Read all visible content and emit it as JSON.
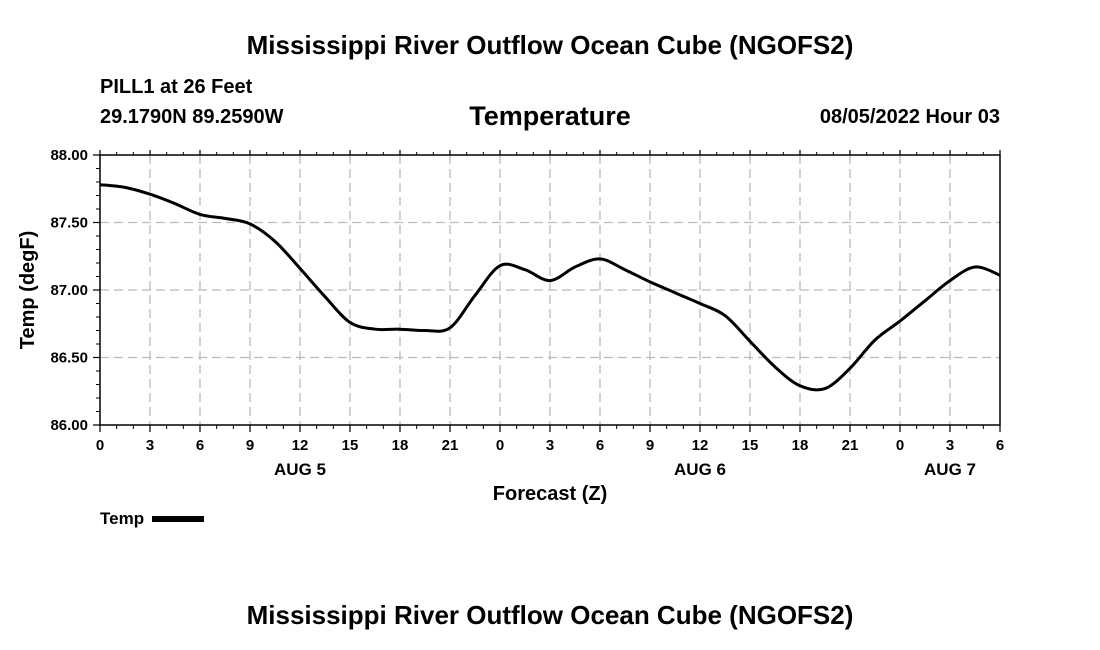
{
  "header": {
    "title": "Mississippi River Outflow Ocean Cube (NGOFS2)",
    "station": "PILL1 at 26 Feet",
    "coords": "29.1790N  89.2590W",
    "chart_title": "Temperature",
    "datetime": "08/05/2022 Hour 03"
  },
  "footer": {
    "title": "Mississippi River Outflow Ocean Cube (NGOFS2)"
  },
  "legend": {
    "label": "Temp"
  },
  "colors": {
    "line": "#000000",
    "grid": "#bbbbbb"
  },
  "chart_data": {
    "type": "line",
    "title": "Temperature",
    "xlabel": "Forecast (Z)",
    "ylabel": "Temp (degF)",
    "ylim": [
      86.0,
      88.0
    ],
    "xlim": [
      0,
      54
    ],
    "y_ticks": [
      "86.00",
      "86.50",
      "87.00",
      "87.50",
      "88.00"
    ],
    "x_tick_labels": [
      "0",
      "3",
      "6",
      "9",
      "12",
      "15",
      "18",
      "21",
      "0",
      "3",
      "6",
      "9",
      "12",
      "15",
      "18",
      "21",
      "0",
      "3",
      "6"
    ],
    "day_labels": [
      {
        "label": "AUG 5",
        "hour": 12
      },
      {
        "label": "AUG 6",
        "hour": 36
      },
      {
        "label": "AUG 7",
        "hour": 51
      }
    ],
    "grid": true,
    "legend_position": "bottom-left",
    "series": [
      {
        "name": "Temp",
        "x": [
          0,
          1.5,
          3,
          4.5,
          6,
          7.5,
          9,
          10.5,
          12,
          13.5,
          15,
          16.5,
          18,
          19.5,
          21,
          22.5,
          24,
          25.5,
          27,
          28.5,
          30,
          31.5,
          33,
          34.5,
          36,
          37.5,
          39,
          40.5,
          42,
          43.5,
          45,
          46.5,
          48,
          49.5,
          51,
          52.5,
          54
        ],
        "values": [
          87.78,
          87.76,
          87.71,
          87.64,
          87.56,
          87.53,
          87.49,
          87.36,
          87.16,
          86.95,
          86.76,
          86.71,
          86.71,
          86.7,
          86.72,
          86.96,
          87.18,
          87.15,
          87.07,
          87.17,
          87.23,
          87.15,
          87.06,
          86.98,
          86.9,
          86.81,
          86.62,
          86.43,
          86.29,
          86.27,
          86.42,
          86.63,
          86.77,
          86.92,
          87.07,
          87.17,
          87.11
        ]
      }
    ]
  }
}
